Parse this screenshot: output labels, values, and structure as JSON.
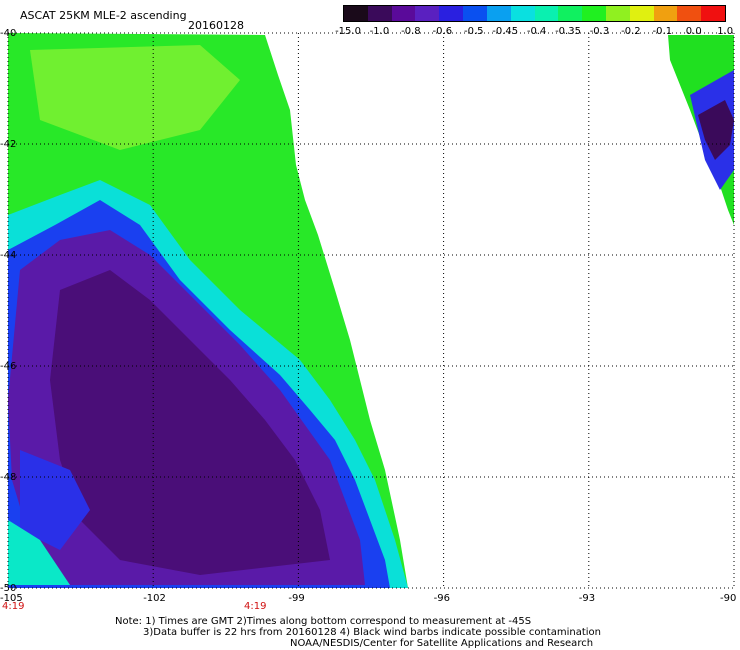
{
  "title": "ASCAT 25KM MLE-2 ascending",
  "date": "20160128",
  "colorbar": {
    "labels": [
      "-15.0",
      "-1.0",
      "-0.8",
      "-0.6",
      "-0.5",
      "-0.45",
      "-0.4",
      "-0.35",
      "-0.3",
      "-0.2",
      "-0.1",
      "0.0",
      "1.0"
    ],
    "colors": [
      "#1a0a1a",
      "#3a0a5a",
      "#5a0a9a",
      "#5a20c0",
      "#2a20e0",
      "#0a50f0",
      "#0aa0f0",
      "#0ae0e0",
      "#0af0b0",
      "#10f060",
      "#20f020",
      "#90f020",
      "#e0f010",
      "#f0a010",
      "#f05010",
      "#f01010"
    ]
  },
  "map": {
    "lon_labels": [
      "-105",
      "-102",
      "-99",
      "-96",
      "-93",
      "-90"
    ],
    "lat_labels": [
      "-40",
      "-42",
      "-44",
      "-46",
      "-48",
      "-50"
    ],
    "lon_range": [
      -105,
      -90
    ],
    "lat_range": [
      -50,
      -40
    ],
    "gridlines": true
  },
  "time_labels": [
    {
      "text": "4:19",
      "lon": -105
    },
    {
      "text": "4:19",
      "lon": -100
    }
  ],
  "notes": [
    "Note: 1) Times are GMT 2)Times along bottom correspond to measurement at -45S",
    "3)Data buffer is 22 hrs from 20160128 4) Black wind barbs indicate possible contamination",
    "NOAA/NESDIS/Center for Satellite Applications and Research"
  ]
}
